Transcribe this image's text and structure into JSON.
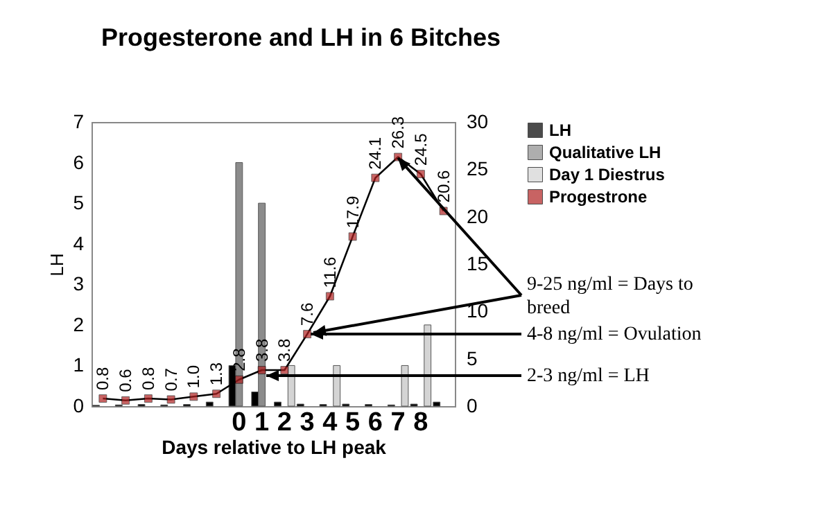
{
  "chart_data": {
    "type": "bar",
    "title": "Progesterone and LH in 6 Bitches",
    "xlabel": "Days relative to LH peak",
    "ylabel": "LH",
    "categories": [
      null,
      null,
      null,
      null,
      null,
      null,
      "0",
      "1",
      "2",
      "3",
      "4",
      "5",
      "6",
      "7",
      "8",
      null
    ],
    "series": [
      {
        "name": "LH",
        "color": "#000000",
        "values": [
          0.02,
          0.03,
          0.04,
          0.03,
          0.04,
          0.1,
          1.0,
          0.35,
          0.1,
          0.05,
          0.04,
          0.05,
          0.04,
          0.03,
          0.05,
          0.1
        ]
      },
      {
        "name": "Qualitative LH",
        "color": "#8c8c8c",
        "values": [
          null,
          null,
          null,
          null,
          null,
          null,
          6,
          5,
          null,
          null,
          null,
          null,
          null,
          null,
          null,
          null
        ]
      },
      {
        "name": "Day 1 Diestrus",
        "color": "#d4d4d4",
        "values": [
          null,
          null,
          null,
          null,
          null,
          null,
          null,
          null,
          1,
          null,
          1,
          null,
          null,
          1,
          2,
          null
        ]
      },
      {
        "name": "Progestrone",
        "type": "line",
        "axis": "y2",
        "color": "#b22222",
        "values": [
          0.8,
          0.6,
          0.8,
          0.7,
          1.0,
          1.3,
          2.8,
          3.8,
          3.8,
          7.6,
          11.6,
          17.9,
          24.1,
          26.3,
          24.5,
          20.6
        ],
        "value_labels": [
          "0.8",
          "0.6",
          "0.8",
          "0.7",
          "1.0",
          "1.3",
          "2.8",
          "3.8",
          "3.8",
          "7.6",
          "11.6",
          "17.9",
          "24.1",
          "26.3",
          "24.5",
          "20.6"
        ]
      }
    ],
    "ylim": [
      0,
      7
    ],
    "yticks": [
      0,
      1,
      2,
      3,
      4,
      5,
      6,
      7
    ],
    "y2lim": [
      0,
      30
    ],
    "y2ticks": [
      0,
      5,
      10,
      15,
      20,
      25,
      30
    ],
    "marker": "square",
    "legend": "top right",
    "annotations": [
      "9-25 ng/ml = Days to breed",
      "4-8 ng/ml = Ovulation",
      "2-3 ng/ml = LH"
    ]
  }
}
